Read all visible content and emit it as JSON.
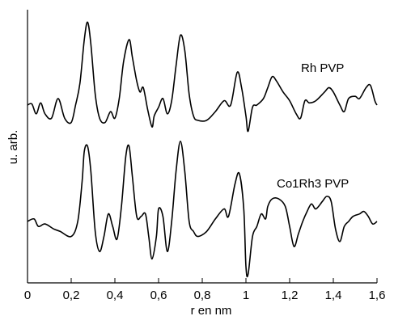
{
  "chart_data": {
    "type": "line",
    "xlabel": "r en nm",
    "ylabel": "u. arb.",
    "xlim": [
      0,
      1.6
    ],
    "ylim": [
      -3.8,
      5.0
    ],
    "x_ticks": [
      "0",
      "0,2",
      "0,4",
      "0,6",
      "0,8",
      "1",
      "1,2",
      "1,4",
      "1,6"
    ],
    "x_tick_values": [
      0,
      0.2,
      0.4,
      0.6,
      0.8,
      1.0,
      1.2,
      1.4,
      1.6
    ],
    "grid": false,
    "legend": "inline labels",
    "line_color": "#000000",
    "series": [
      {
        "name": "Rh PVP",
        "points": [
          [
            0.0,
            0.0
          ],
          [
            0.02,
            0.05
          ],
          [
            0.04,
            -0.4
          ],
          [
            0.06,
            0.1
          ],
          [
            0.08,
            -0.4
          ],
          [
            0.11,
            -0.6
          ],
          [
            0.14,
            0.3
          ],
          [
            0.17,
            -0.6
          ],
          [
            0.2,
            -0.8
          ],
          [
            0.22,
            0.0
          ],
          [
            0.24,
            1.0
          ],
          [
            0.26,
            3.0
          ],
          [
            0.275,
            3.8
          ],
          [
            0.29,
            2.8
          ],
          [
            0.31,
            0.5
          ],
          [
            0.33,
            -0.6
          ],
          [
            0.355,
            -0.8
          ],
          [
            0.38,
            -0.3
          ],
          [
            0.4,
            -0.6
          ],
          [
            0.42,
            0.3
          ],
          [
            0.44,
            2.0
          ],
          [
            0.465,
            3.0
          ],
          [
            0.48,
            2.2
          ],
          [
            0.5,
            1.1
          ],
          [
            0.515,
            0.6
          ],
          [
            0.53,
            0.8
          ],
          [
            0.55,
            -0.2
          ],
          [
            0.57,
            -1.0
          ],
          [
            0.58,
            -0.5
          ],
          [
            0.6,
            -0.1
          ],
          [
            0.62,
            0.3
          ],
          [
            0.64,
            -0.4
          ],
          [
            0.66,
            0.2
          ],
          [
            0.68,
            1.8
          ],
          [
            0.7,
            3.2
          ],
          [
            0.72,
            2.5
          ],
          [
            0.74,
            0.5
          ],
          [
            0.76,
            -0.5
          ],
          [
            0.78,
            -0.7
          ],
          [
            0.82,
            -0.7
          ],
          [
            0.86,
            -0.3
          ],
          [
            0.9,
            0.2
          ],
          [
            0.93,
            0.0
          ],
          [
            0.96,
            1.5
          ],
          [
            0.98,
            0.8
          ],
          [
            1.0,
            -0.5
          ],
          [
            1.01,
            -1.2
          ],
          [
            1.03,
            -0.1
          ],
          [
            1.05,
            0.0
          ],
          [
            1.08,
            0.3
          ],
          [
            1.1,
            0.8
          ],
          [
            1.12,
            1.3
          ],
          [
            1.14,
            1.1
          ],
          [
            1.17,
            0.6
          ],
          [
            1.2,
            0.2
          ],
          [
            1.23,
            -0.4
          ],
          [
            1.25,
            -0.6
          ],
          [
            1.27,
            0.2
          ],
          [
            1.29,
            0.1
          ],
          [
            1.32,
            0.2
          ],
          [
            1.36,
            0.6
          ],
          [
            1.38,
            0.8
          ],
          [
            1.4,
            0.6
          ],
          [
            1.43,
            0.0
          ],
          [
            1.45,
            -0.3
          ],
          [
            1.47,
            0.3
          ],
          [
            1.5,
            0.4
          ],
          [
            1.52,
            0.3
          ],
          [
            1.55,
            0.8
          ],
          [
            1.57,
            0.9
          ],
          [
            1.59,
            0.2
          ],
          [
            1.6,
            0.0
          ]
        ]
      },
      {
        "name": "Co1Rh3 PVP",
        "points": [
          [
            0.0,
            0.0
          ],
          [
            0.03,
            0.1
          ],
          [
            0.05,
            -0.2
          ],
          [
            0.08,
            -0.1
          ],
          [
            0.12,
            -0.3
          ],
          [
            0.15,
            -0.4
          ],
          [
            0.2,
            -0.6
          ],
          [
            0.23,
            0.0
          ],
          [
            0.25,
            1.6
          ],
          [
            0.26,
            2.8
          ],
          [
            0.275,
            3.0
          ],
          [
            0.29,
            2.0
          ],
          [
            0.31,
            -0.4
          ],
          [
            0.33,
            -1.2
          ],
          [
            0.35,
            -0.6
          ],
          [
            0.37,
            0.3
          ],
          [
            0.39,
            -0.2
          ],
          [
            0.41,
            -0.7
          ],
          [
            0.43,
            0.6
          ],
          [
            0.45,
            2.6
          ],
          [
            0.465,
            3.0
          ],
          [
            0.48,
            1.8
          ],
          [
            0.5,
            0.2
          ],
          [
            0.52,
            0.2
          ],
          [
            0.54,
            0.3
          ],
          [
            0.555,
            -0.6
          ],
          [
            0.57,
            -1.5
          ],
          [
            0.59,
            -0.6
          ],
          [
            0.6,
            0.5
          ],
          [
            0.62,
            0.2
          ],
          [
            0.64,
            -1.2
          ],
          [
            0.66,
            0.0
          ],
          [
            0.68,
            2.0
          ],
          [
            0.7,
            3.2
          ],
          [
            0.72,
            2.0
          ],
          [
            0.74,
            0.0
          ],
          [
            0.76,
            -0.4
          ],
          [
            0.78,
            -0.6
          ],
          [
            0.82,
            -0.4
          ],
          [
            0.86,
            0.1
          ],
          [
            0.9,
            0.5
          ],
          [
            0.92,
            0.2
          ],
          [
            0.95,
            1.5
          ],
          [
            0.97,
            1.9
          ],
          [
            0.99,
            0.5
          ],
          [
            1.0,
            -1.8
          ],
          [
            1.01,
            -2.1
          ],
          [
            1.03,
            -0.6
          ],
          [
            1.05,
            -0.2
          ],
          [
            1.07,
            0.3
          ],
          [
            1.09,
            0.1
          ],
          [
            1.1,
            0.6
          ],
          [
            1.12,
            0.9
          ],
          [
            1.15,
            0.9
          ],
          [
            1.18,
            0.6
          ],
          [
            1.2,
            -0.2
          ],
          [
            1.22,
            -1.0
          ],
          [
            1.24,
            -0.5
          ],
          [
            1.26,
            0.0
          ],
          [
            1.28,
            0.4
          ],
          [
            1.3,
            0.7
          ],
          [
            1.32,
            0.5
          ],
          [
            1.35,
            0.8
          ],
          [
            1.37,
            1.0
          ],
          [
            1.39,
            0.8
          ],
          [
            1.41,
            -0.3
          ],
          [
            1.43,
            -0.8
          ],
          [
            1.45,
            -0.2
          ],
          [
            1.47,
            0.0
          ],
          [
            1.49,
            0.2
          ],
          [
            1.52,
            0.3
          ],
          [
            1.54,
            0.4
          ],
          [
            1.56,
            0.2
          ],
          [
            1.58,
            -0.1
          ],
          [
            1.6,
            0.0
          ]
        ]
      }
    ]
  }
}
